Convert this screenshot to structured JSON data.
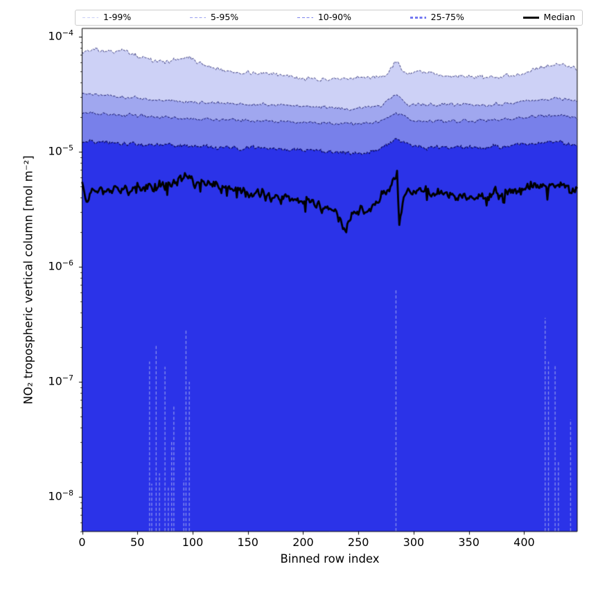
{
  "legend": {
    "entries": [
      {
        "label": "1-99%",
        "color": "#c8cdf5",
        "lw": 1.0,
        "dashed": true
      },
      {
        "label": "5-95%",
        "color": "#99a0ef",
        "lw": 1.3,
        "dashed": true
      },
      {
        "label": "10-90%",
        "color": "#7a82ec",
        "lw": 1.8,
        "dashed": true
      },
      {
        "label": "25-75%",
        "color": "#7277f0",
        "lw": 2.8,
        "dashed": true
      },
      {
        "label": "Median",
        "color": "#000000",
        "lw": 3.0,
        "dashed": false
      }
    ]
  },
  "yaxis": {
    "title": "NO₂ tropospheric vertical column [mol m⁻²]",
    "ticks": [
      {
        "base": "10",
        "exp": "−4",
        "value": 0.0001
      },
      {
        "base": "10",
        "exp": "−5",
        "value": 1e-05
      },
      {
        "base": "10",
        "exp": "−6",
        "value": 1e-06
      },
      {
        "base": "10",
        "exp": "−7",
        "value": 1e-07
      },
      {
        "base": "10",
        "exp": "−8",
        "value": 1e-08
      }
    ]
  },
  "xaxis": {
    "title": "Binned row index",
    "ticks": [
      {
        "label": "0",
        "value": 0
      },
      {
        "label": "50",
        "value": 50
      },
      {
        "label": "100",
        "value": 100
      },
      {
        "label": "150",
        "value": 150
      },
      {
        "label": "200",
        "value": 200
      },
      {
        "label": "250",
        "value": 250
      },
      {
        "label": "300",
        "value": 300
      },
      {
        "label": "350",
        "value": 350
      },
      {
        "label": "400",
        "value": 400
      }
    ]
  },
  "chart_data": {
    "type": "area",
    "title": "",
    "xlabel": "Binned row index",
    "ylabel": "NO₂ tropospheric vertical column [mol m⁻²]",
    "y_scale": "log",
    "x_range": [
      0,
      448
    ],
    "y_range": [
      5e-09,
      0.000118
    ],
    "grid": false,
    "legend_position": "top",
    "seed": 13,
    "edge_line_color": "#0a0a5a",
    "streak_color": "#8a91ef",
    "median_color": "#000000",
    "series": [
      {
        "name": "p99 upper (1-99%)",
        "role": "fill",
        "fill": "#cdd1f6",
        "edge_lw": 0.8,
        "noise_log_sigma": 0.012,
        "control_points": [
          [
            0,
            7.4e-05
          ],
          [
            12,
            7.8e-05
          ],
          [
            25,
            7.2e-05
          ],
          [
            35,
            7.8e-05
          ],
          [
            50,
            6.8e-05
          ],
          [
            70,
            6e-05
          ],
          [
            84,
            6.3e-05
          ],
          [
            95,
            6.7e-05
          ],
          [
            110,
            5.7e-05
          ],
          [
            130,
            5e-05
          ],
          [
            150,
            4.9e-05
          ],
          [
            175,
            4.7e-05
          ],
          [
            208,
            4.3e-05
          ],
          [
            235,
            4.2e-05
          ],
          [
            255,
            4.4e-05
          ],
          [
            275,
            4.6e-05
          ],
          [
            284,
            6.1e-05
          ],
          [
            292,
            4.8e-05
          ],
          [
            302,
            4.9e-05
          ],
          [
            330,
            4.6e-05
          ],
          [
            352,
            4.5e-05
          ],
          [
            377,
            4.4e-05
          ],
          [
            400,
            4.9e-05
          ],
          [
            415,
            5.5e-05
          ],
          [
            434,
            5.8e-05
          ],
          [
            448,
            5.2e-05
          ]
        ]
      },
      {
        "name": "p95 upper (5-95%)",
        "role": "fill",
        "fill": "#a0a7ef",
        "edge_lw": 0.9,
        "noise_log_sigma": 0.009,
        "control_points": [
          [
            0,
            3.2e-05
          ],
          [
            25,
            3.1e-05
          ],
          [
            60,
            2.85e-05
          ],
          [
            100,
            2.7e-05
          ],
          [
            140,
            2.6e-05
          ],
          [
            180,
            2.55e-05
          ],
          [
            220,
            2.45e-05
          ],
          [
            245,
            2.35e-05
          ],
          [
            270,
            2.5e-05
          ],
          [
            284,
            3.2e-05
          ],
          [
            295,
            2.55e-05
          ],
          [
            330,
            2.6e-05
          ],
          [
            365,
            2.55e-05
          ],
          [
            395,
            2.7e-05
          ],
          [
            420,
            2.9e-05
          ],
          [
            435,
            2.9e-05
          ],
          [
            448,
            2.75e-05
          ]
        ]
      },
      {
        "name": "p90 upper (10-90%)",
        "role": "fill",
        "fill": "#7880ea",
        "edge_lw": 1.0,
        "noise_log_sigma": 0.009,
        "control_points": [
          [
            0,
            2.2e-05
          ],
          [
            30,
            2.1e-05
          ],
          [
            70,
            2e-05
          ],
          [
            110,
            1.92e-05
          ],
          [
            160,
            1.86e-05
          ],
          [
            210,
            1.8e-05
          ],
          [
            245,
            1.72e-05
          ],
          [
            270,
            1.82e-05
          ],
          [
            284,
            2.2e-05
          ],
          [
            300,
            1.85e-05
          ],
          [
            340,
            1.84e-05
          ],
          [
            380,
            1.9e-05
          ],
          [
            415,
            2.05e-05
          ],
          [
            435,
            2.05e-05
          ],
          [
            448,
            1.95e-05
          ]
        ]
      },
      {
        "name": "p75 upper (25-75%)",
        "role": "fill",
        "fill": "#2b33e8",
        "edge_lw": 1.2,
        "noise_log_sigma": 0.012,
        "control_points": [
          [
            0,
            1.22e-05
          ],
          [
            40,
            1.18e-05
          ],
          [
            80,
            1.14e-05
          ],
          [
            120,
            1.1e-05
          ],
          [
            170,
            1.07e-05
          ],
          [
            210,
            1.04e-05
          ],
          [
            245,
            9.6e-06
          ],
          [
            268,
            1.05e-05
          ],
          [
            284,
            1.27e-05
          ],
          [
            300,
            1.1e-05
          ],
          [
            340,
            1.09e-05
          ],
          [
            380,
            1.1e-05
          ],
          [
            415,
            1.2e-05
          ],
          [
            435,
            1.19e-05
          ],
          [
            448,
            1.13e-05
          ]
        ]
      },
      {
        "name": "Median",
        "role": "median",
        "lw": 2.8,
        "noise_log_sigma": 0.03,
        "spike_prob": 0.05,
        "spike_mag": 0.09,
        "control_points": [
          [
            0,
            5.4e-06
          ],
          [
            4,
            3.9e-06
          ],
          [
            10,
            4.7e-06
          ],
          [
            30,
            4.7e-06
          ],
          [
            55,
            4.9e-06
          ],
          [
            75,
            5.2e-06
          ],
          [
            92,
            5.9e-06
          ],
          [
            105,
            5.5e-06
          ],
          [
            130,
            4.8e-06
          ],
          [
            150,
            4.4e-06
          ],
          [
            170,
            4.2e-06
          ],
          [
            190,
            3.9e-06
          ],
          [
            210,
            3.5e-06
          ],
          [
            228,
            3e-06
          ],
          [
            234,
            2.5e-06
          ],
          [
            238,
            2.1e-06
          ],
          [
            244,
            3e-06
          ],
          [
            252,
            3.4e-06
          ],
          [
            258,
            2.9e-06
          ],
          [
            263,
            3.3e-06
          ],
          [
            270,
            4.3e-06
          ],
          [
            278,
            4.6e-06
          ],
          [
            283,
            5.9e-06
          ],
          [
            285,
            6.4e-06
          ],
          [
            287,
            2.3e-06
          ],
          [
            292,
            4.2e-06
          ],
          [
            300,
            4.5e-06
          ],
          [
            312,
            4.6e-06
          ],
          [
            330,
            4.4e-06
          ],
          [
            355,
            4.2e-06
          ],
          [
            375,
            4.4e-06
          ],
          [
            395,
            4.5e-06
          ],
          [
            410,
            5e-06
          ],
          [
            425,
            5.2e-06
          ],
          [
            437,
            5.3e-06
          ],
          [
            443,
            4.6e-06
          ],
          [
            448,
            4.9e-06
          ]
        ]
      }
    ],
    "low_streaks": [
      [
        61,
        1.5e-07
      ],
      [
        63,
        1.3e-08
      ],
      [
        67,
        2.1e-07
      ],
      [
        70,
        1.6e-08
      ],
      [
        75,
        1.35e-07
      ],
      [
        78,
        1.2e-08
      ],
      [
        81,
        3e-08
      ],
      [
        83,
        6.2e-08
      ],
      [
        92,
        1.4e-08
      ],
      [
        94,
        2.8e-07
      ],
      [
        97,
        1e-07
      ],
      [
        284,
        6.3e-07
      ],
      [
        419,
        3.6e-07
      ],
      [
        422,
        1.5e-07
      ],
      [
        428,
        1.4e-07
      ],
      [
        431,
        2e-08
      ],
      [
        442,
        4.7e-08
      ]
    ]
  }
}
